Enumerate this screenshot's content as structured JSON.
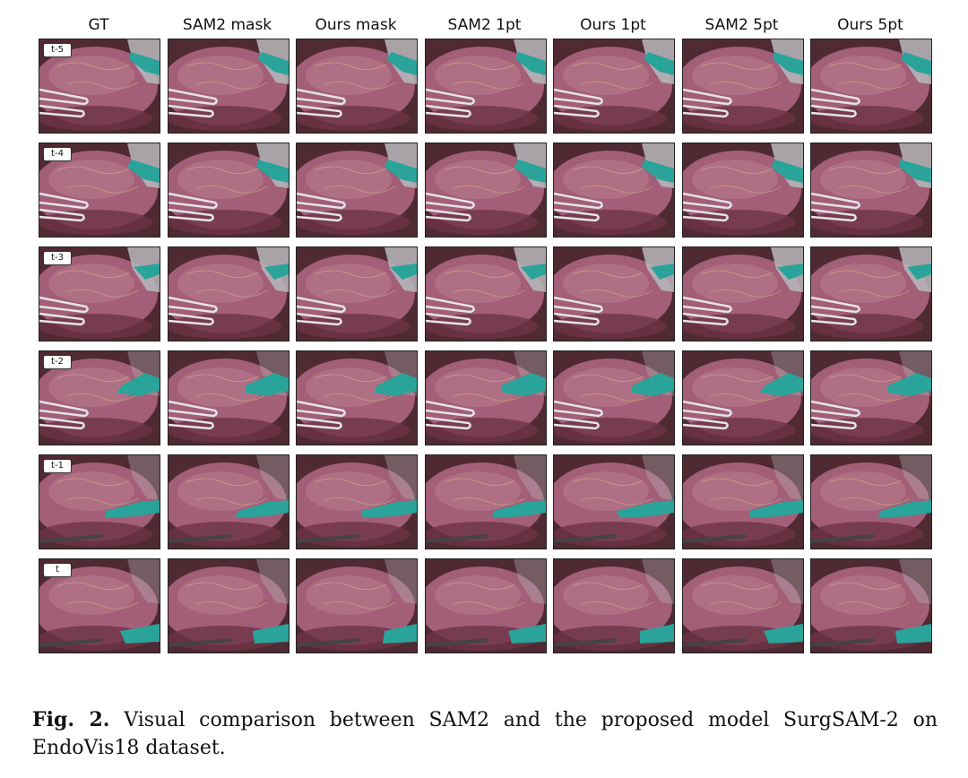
{
  "figure": {
    "columns": [
      "GT",
      "SAM2 mask",
      "Ours mask",
      "SAM2 1pt",
      "Ours 1pt",
      "SAM2 5pt",
      "Ours 5pt"
    ],
    "rows": [
      "t-5",
      "t-4",
      "t-3",
      "t-2",
      "t-1",
      "t"
    ],
    "colors": {
      "tissue": "#a25f77",
      "tissue_dark": "#6e3346",
      "background": "#4f2a32",
      "instrument": "#b9b9bd",
      "mask": "#2aa39a"
    }
  },
  "caption": {
    "label": "Fig. 2.",
    "text": "Visual comparison between SAM2 and the proposed model SurgSAM-2 on EndoVis18 dataset."
  }
}
